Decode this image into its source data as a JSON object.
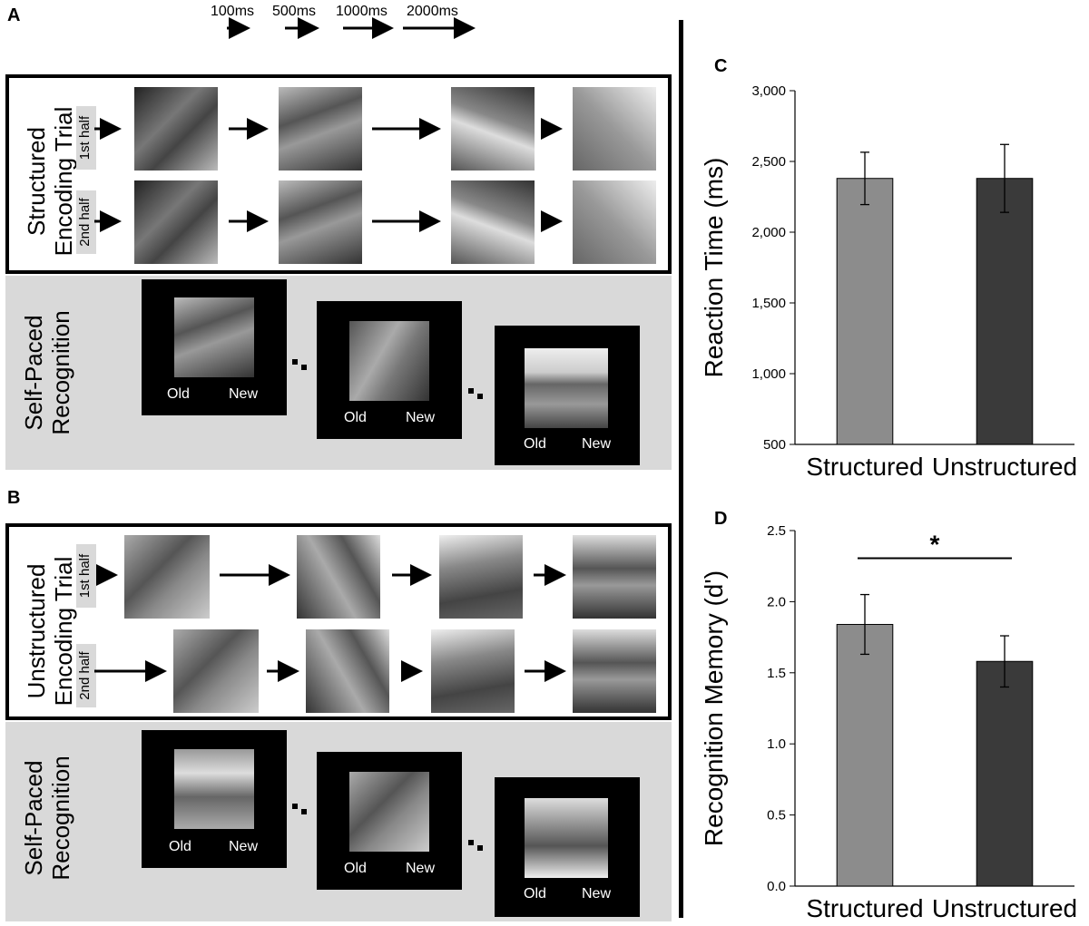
{
  "panels": {
    "a_letter": "A",
    "b_letter": "B",
    "c_letter": "C",
    "d_letter": "D"
  },
  "timing_legend": [
    "100ms",
    "500ms",
    "1000ms",
    "2000ms"
  ],
  "structured": {
    "encoding_label": "Structured\nEncoding Trial",
    "first_half": "1st half",
    "second_half": "2nd half",
    "recognition_label": "Self-Paced\nRecognition",
    "old": "Old",
    "new": "New"
  },
  "unstructured": {
    "encoding_label": "Unstructured\nEncoding Trial",
    "first_half": "1st half",
    "second_half": "2nd half",
    "recognition_label": "Self-Paced\nRecognition",
    "old": "Old",
    "new": "New"
  },
  "chart_data": [
    {
      "type": "bar",
      "categories": [
        "Structured",
        "Unstructured"
      ],
      "values": [
        2380,
        2380
      ],
      "errors": [
        185,
        240
      ],
      "ylabel": "Reaction Time (ms)",
      "ylim": [
        500,
        3000
      ],
      "yticks": [
        "500",
        "1,000",
        "1,500",
        "2,000",
        "2,500",
        "3,000"
      ],
      "colors": [
        "#8c8c8c",
        "#3a3a3a"
      ],
      "grid": false
    },
    {
      "type": "bar",
      "categories": [
        "Structured",
        "Unstructured"
      ],
      "values": [
        1.84,
        1.58
      ],
      "errors": [
        0.21,
        0.18
      ],
      "ylabel": "Recognition Memory (d')",
      "ylim": [
        0,
        2.5
      ],
      "yticks": [
        "0.0",
        "0.5",
        "1.0",
        "1.5",
        "2.0",
        "2.5"
      ],
      "significance": "*",
      "colors": [
        "#8c8c8c",
        "#3a3a3a"
      ],
      "grid": false
    }
  ]
}
